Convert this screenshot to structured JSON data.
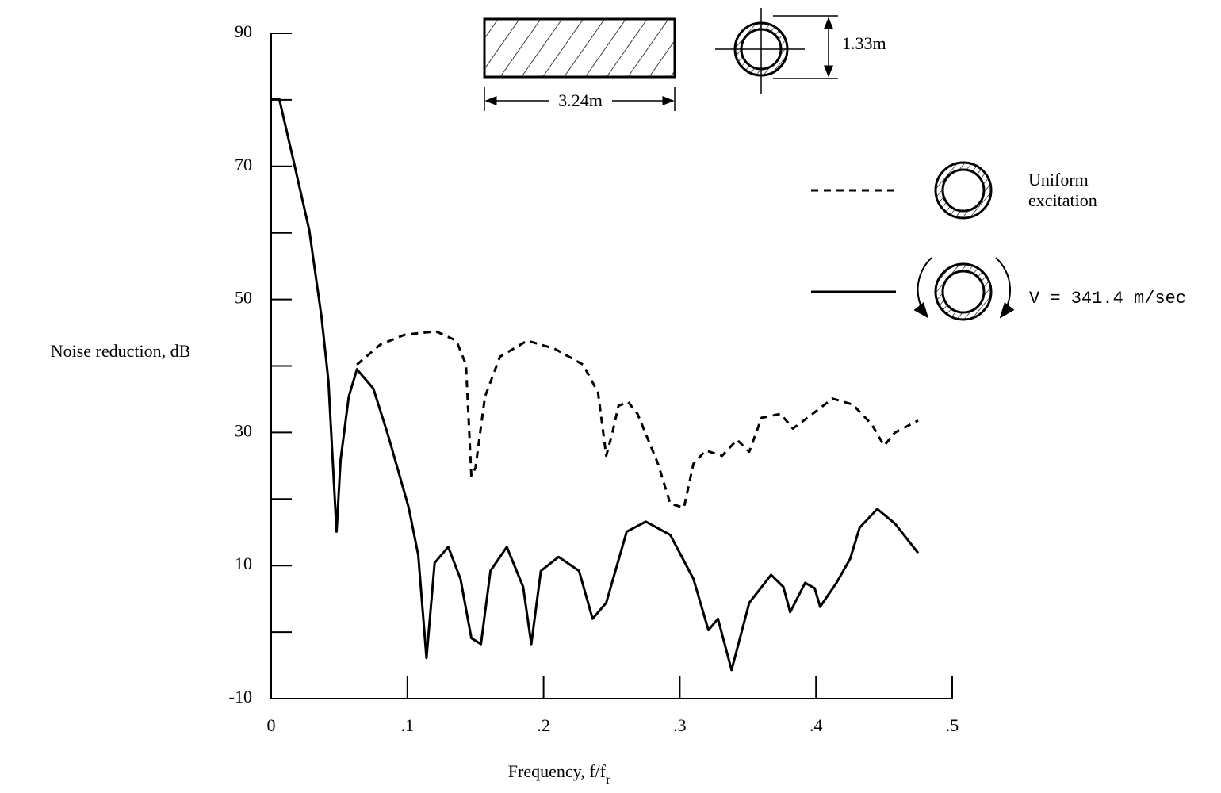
{
  "chart_data": {
    "type": "line",
    "y_label": "Noise reduction, dB",
    "x_label": "Frequency, f/f",
    "x_label_subscript": "r",
    "xlim": [
      0,
      0.5
    ],
    "ylim": [
      -10,
      90
    ],
    "xticks": [
      0,
      {
        "value": 0.1,
        "label": ".1"
      },
      {
        "value": 0.2,
        "label": ".2"
      },
      {
        "value": 0.3,
        "label": ".3"
      },
      {
        "value": 0.4,
        "label": ".4"
      },
      {
        "value": 0.5,
        "label": ".5"
      }
    ],
    "yticks": [
      -10,
      10,
      30,
      50,
      70,
      90
    ],
    "yminor_ticks": [
      0,
      20,
      40,
      60,
      80
    ],
    "grid": false,
    "legend_position": "right",
    "annotations": {
      "length": "3.24m",
      "diameter": "1.33m"
    },
    "series": [
      {
        "name": "Uniform excitation",
        "color": "#000000",
        "dashed": true,
        "x": [
          0.063,
          0.08,
          0.098,
          0.121,
          0.136,
          0.143,
          0.147,
          0.15,
          0.157,
          0.168,
          0.188,
          0.208,
          0.229,
          0.24,
          0.246,
          0.25,
          0.255,
          0.262,
          0.269,
          0.284,
          0.293,
          0.303,
          0.31,
          0.319,
          0.331,
          0.342,
          0.351,
          0.36,
          0.374,
          0.383,
          0.395,
          0.412,
          0.427,
          0.441,
          0.45,
          0.458,
          0.475
        ],
        "values": [
          40.2,
          43.2,
          44.7,
          45.2,
          43.8,
          40.2,
          23.5,
          24.7,
          35.4,
          41.4,
          43.8,
          42.6,
          40.2,
          36.0,
          26.5,
          29.5,
          34.0,
          34.6,
          32.8,
          25.3,
          19.3,
          18.7,
          25.3,
          27.3,
          26.5,
          28.9,
          27.1,
          32.2,
          32.8,
          30.6,
          32.4,
          35.1,
          34.2,
          31.2,
          28.0,
          30.0,
          31.8
        ]
      },
      {
        "name": "V = 341.4 m/sec",
        "color": "#000000",
        "dashed": false,
        "x": [
          0,
          0.006,
          0.016,
          0.028,
          0.037,
          0.042,
          0.048,
          0.051,
          0.057,
          0.063,
          0.075,
          0.086,
          0.101,
          0.108,
          0.114,
          0.12,
          0.13,
          0.139,
          0.147,
          0.154,
          0.161,
          0.173,
          0.185,
          0.191,
          0.198,
          0.211,
          0.226,
          0.236,
          0.246,
          0.261,
          0.275,
          0.293,
          0.31,
          0.321,
          0.328,
          0.338,
          0.351,
          0.367,
          0.376,
          0.381,
          0.392,
          0.399,
          0.403,
          0.415,
          0.425,
          0.432,
          0.445,
          0.458,
          0.475
        ],
        "values": [
          80.1,
          80.1,
          71.2,
          60.4,
          47.3,
          37.8,
          15.1,
          25.9,
          35.4,
          39.5,
          36.6,
          29.5,
          18.7,
          11.6,
          -3.9,
          10.4,
          12.8,
          8.0,
          -0.9,
          -1.8,
          9.2,
          12.8,
          6.8,
          -1.8,
          9.2,
          11.3,
          9.2,
          2.0,
          4.4,
          15.1,
          16.6,
          14.6,
          8.0,
          0.3,
          2.0,
          -5.7,
          4.4,
          8.6,
          6.8,
          3.0,
          7.4,
          6.6,
          3.8,
          7.4,
          11.0,
          15.7,
          18.5,
          16.3,
          11.9
        ]
      }
    ]
  }
}
